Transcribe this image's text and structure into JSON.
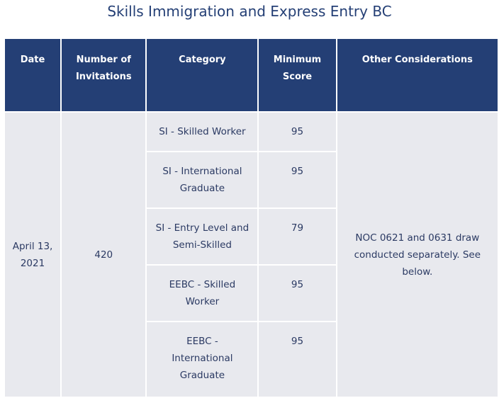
{
  "title": "Skills Immigration and Express Entry BC",
  "columns": [
    "Date",
    "Number of Invitations",
    "Category",
    "Minimum Score",
    "Other Considerations"
  ],
  "row": {
    "date": "April 13, 2021",
    "invitations": "420",
    "considerations": "NOC 0621 and 0631 draw conducted separately. See below.",
    "categories": [
      {
        "category": "SI - Skilled Worker",
        "score": "95"
      },
      {
        "category": "SI - International Graduate",
        "score": "95"
      },
      {
        "category": "SI - Entry Level and Semi-Skilled",
        "score": "79"
      },
      {
        "category": "EEBC - Skilled Worker",
        "score": "95"
      },
      {
        "category": "EEBC - International Graduate",
        "score": "95"
      }
    ]
  },
  "colors": {
    "header": "#243f75",
    "cell": "#e8e9ee",
    "text": "#2b3a63"
  }
}
